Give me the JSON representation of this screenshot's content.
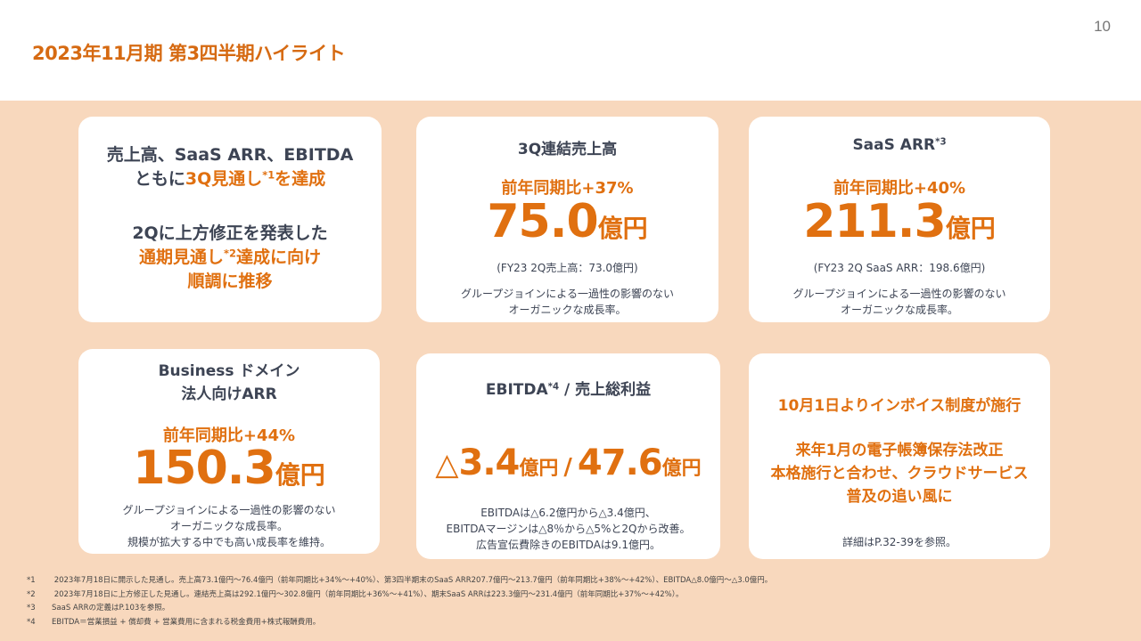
{
  "header": {
    "title": "2023年11月期 第3四半期ハイライト",
    "page_number": "10"
  },
  "colors": {
    "accent_orange": "#e07010",
    "title_orange": "#d66a12",
    "text_dark": "#3d4454",
    "band_background": "#f8d8bd",
    "card_background": "#ffffff"
  },
  "cards": {
    "summary": {
      "line1": "売上高、SaaS ARR、EBITDA",
      "line2_prefix": "ともに",
      "line2_highlight": "3Q見通し",
      "line2_sup": "*1",
      "line2_highlight2": "を達成",
      "line3": "2Qに上方修正を発表した",
      "line4_highlight": "通期見通し",
      "line4_sup": "*2",
      "line4_highlight2": "達成に向け",
      "line5_highlight": "順調に推移"
    },
    "revenue": {
      "title": "3Q連結売上高",
      "yoy": "前年同期比+37%",
      "value": "75.0",
      "unit": "億円",
      "sub": "(FY23 2Q売上高：73.0億円)",
      "note1": "グループジョインによる一過性の影響のない",
      "note2": "オーガニックな成長率。"
    },
    "saas_arr": {
      "title": "SaaS ARR",
      "title_sup": "*3",
      "yoy": "前年同期比+40%",
      "value": "211.3",
      "unit": "億円",
      "sub": "(FY23 2Q SaaS ARR：198.6億円)",
      "note1": "グループジョインによる一過性の影響のない",
      "note2": "オーガニックな成長率。"
    },
    "business_arr": {
      "title1": "Business ドメイン",
      "title2": "法人向けARR",
      "yoy": "前年同期比+44%",
      "value": "150.3",
      "unit": "億円",
      "note1": "グループジョインによる一過性の影響のない",
      "note2": "オーガニックな成長率。",
      "note3": "規模が拡大する中でも高い成長率を維持。"
    },
    "ebitda": {
      "title": "EBITDA",
      "title_sup": "*4",
      "title_rest": " / 売上総利益",
      "triangle": "△",
      "ebitda_value": "3.4",
      "ebitda_unit": "億円",
      "separator": "/",
      "gross_profit_value": "47.6",
      "gross_profit_unit": "億円",
      "note1": "EBITDAは△6.2億円から△3.4億円、",
      "note2": "EBITDAマージンは△8％から△5%と2Qから改善。",
      "note3": "広告宣伝費除きのEBITDAは9.1億円。"
    },
    "invoice": {
      "line1": "10月1日よりインボイス制度が施行",
      "line2": "来年1月の電子帳簿保存法改正",
      "line3": "本格施行と合わせ、クラウドサービス",
      "line4": "普及の追い風に",
      "detail": "詳細はP.32-39を参照。"
    }
  },
  "footnotes": [
    {
      "mark": "*1",
      "text": " 2023年7月18日に開示した見通し。売上高73.1億円〜76.4億円（前年同期比+34%〜+40%）、第3四半期末のSaaS ARR207.7億円〜213.7億円（前年同期比+38%〜+42%）、EBITDA△8.0億円〜△3.0億円。"
    },
    {
      "mark": "*2",
      "text": " 2023年7月18日に上方修正した見通し。連結売上高は292.1億円〜302.8億円（前年同期比+36%〜+41%）、期末SaaS ARRは223.3億円〜231.4億円（前年同期比+37%〜+42%）。"
    },
    {
      "mark": "*3",
      "text": "SaaS ARRの定義はP.103を参照。"
    },
    {
      "mark": "*4",
      "text": "EBITDA＝営業損益 + 償却費 + 営業費用に含まれる税金費用+株式報酬費用。"
    }
  ]
}
